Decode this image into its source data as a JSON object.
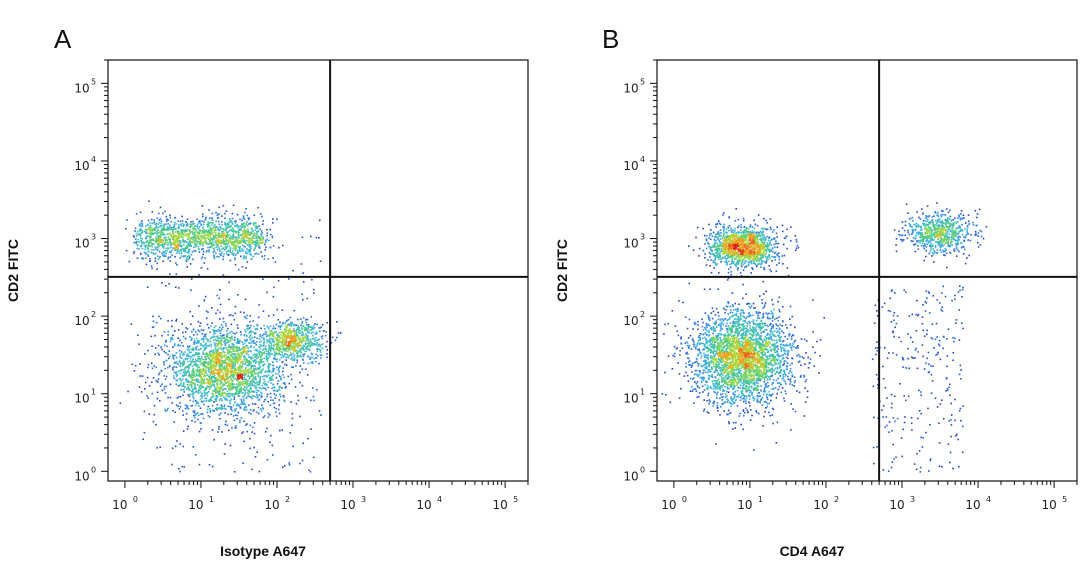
{
  "chart_data": [
    {
      "type": "scatter",
      "panel_label": "A",
      "xlabel": "Isotype A647",
      "ylabel": "CD2 FITC",
      "x_scale": "log",
      "y_scale": "log",
      "xlim": [
        0.6,
        200000
      ],
      "ylim": [
        0.75,
        200000
      ],
      "x_ticks": [
        {
          "base": "10",
          "exp": "0"
        },
        {
          "base": "10",
          "exp": "1"
        },
        {
          "base": "10",
          "exp": "2"
        },
        {
          "base": "10",
          "exp": "3"
        },
        {
          "base": "10",
          "exp": "4"
        },
        {
          "base": "10",
          "exp": "5"
        }
      ],
      "y_ticks": [
        {
          "base": "10",
          "exp": "0"
        },
        {
          "base": "10",
          "exp": "1"
        },
        {
          "base": "10",
          "exp": "2"
        },
        {
          "base": "10",
          "exp": "3"
        },
        {
          "base": "10",
          "exp": "4"
        },
        {
          "base": "10",
          "exp": "5"
        }
      ],
      "quadrant_gate": {
        "x": 500,
        "y": 320
      },
      "populations": [
        {
          "x": 8,
          "y": 1050,
          "count": 1500
        },
        {
          "x": 20,
          "y": 20,
          "count": 2400
        },
        {
          "x": 150,
          "y": 50,
          "count": 700
        }
      ]
    },
    {
      "type": "scatter",
      "panel_label": "B",
      "xlabel": "CD4 A647",
      "ylabel": "CD2 FITC",
      "x_scale": "log",
      "y_scale": "log",
      "xlim": [
        0.6,
        200000
      ],
      "ylim": [
        0.75,
        200000
      ],
      "x_ticks": [
        {
          "base": "10",
          "exp": "0"
        },
        {
          "base": "10",
          "exp": "1"
        },
        {
          "base": "10",
          "exp": "2"
        },
        {
          "base": "10",
          "exp": "3"
        },
        {
          "base": "10",
          "exp": "4"
        },
        {
          "base": "10",
          "exp": "5"
        }
      ],
      "y_ticks": [
        {
          "base": "10",
          "exp": "0"
        },
        {
          "base": "10",
          "exp": "1"
        },
        {
          "base": "10",
          "exp": "2"
        },
        {
          "base": "10",
          "exp": "3"
        },
        {
          "base": "10",
          "exp": "4"
        },
        {
          "base": "10",
          "exp": "5"
        }
      ],
      "quadrant_gate": {
        "x": 500,
        "y": 320
      },
      "populations": [
        {
          "x": 8,
          "y": 800,
          "count": 1300
        },
        {
          "x": 8,
          "y": 30,
          "count": 2900
        },
        {
          "x": 3000,
          "y": 1200,
          "count": 650
        }
      ]
    }
  ]
}
